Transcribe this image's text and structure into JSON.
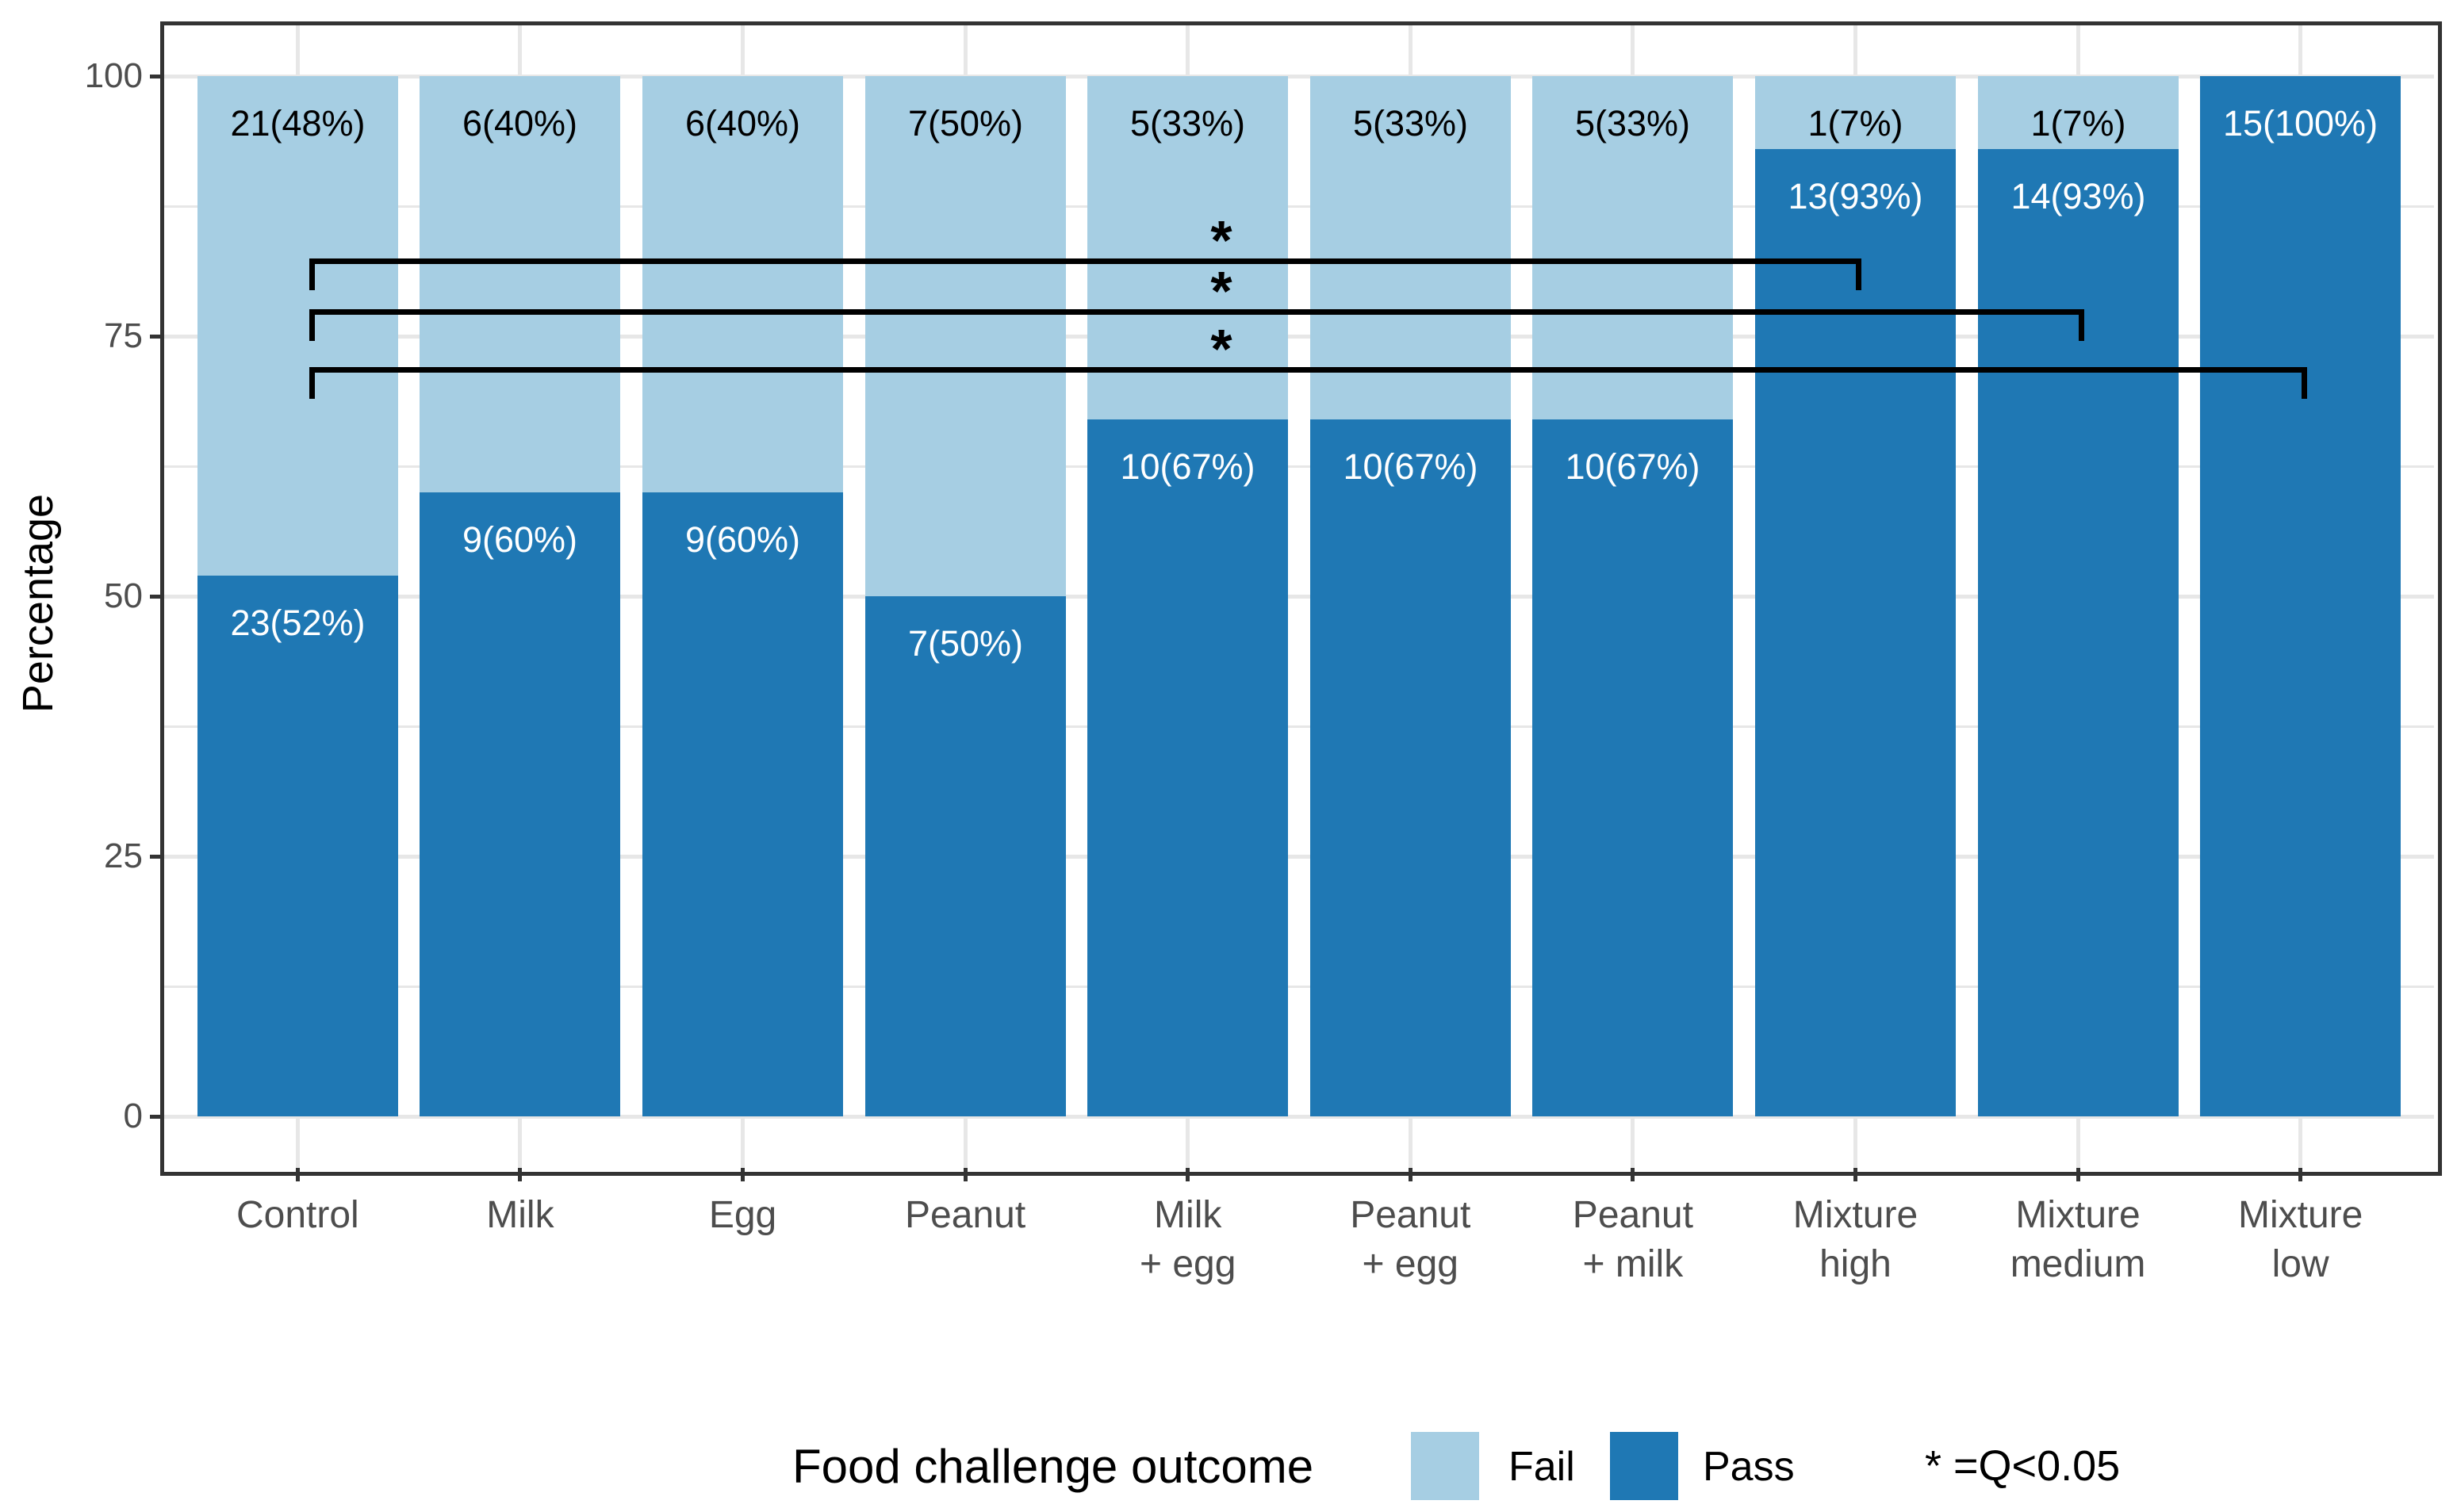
{
  "chart_data": {
    "type": "bar",
    "stacked": true,
    "orientation": "vertical",
    "ylabel": "Percentage",
    "xlabel": "",
    "ylim": [
      0,
      100
    ],
    "yticks_major": [
      0,
      25,
      50,
      75,
      100
    ],
    "ytick_labels": [
      "0",
      "25",
      "50",
      "75",
      "100"
    ],
    "yticks_minor": [
      12.5,
      37.5,
      62.5,
      87.5
    ],
    "grid": true,
    "categories": [
      "Control",
      "Milk",
      "Egg",
      "Peanut",
      "Milk\n+ egg",
      "Peanut\n+ egg",
      "Peanut\n+ milk",
      "Mixture\nhigh",
      "Mixture\nmedium",
      "Mixture\nlow"
    ],
    "series": [
      {
        "name": "Fail",
        "color": "#A6CEE3",
        "label_color": "#000000",
        "values": [
          48,
          40,
          40,
          50,
          33,
          33,
          33,
          7,
          7,
          0
        ],
        "bar_labels": [
          "21(48%)",
          "6(40%)",
          "6(40%)",
          "7(50%)",
          "5(33%)",
          "5(33%)",
          "5(33%)",
          "1(7%)",
          "1(7%)",
          ""
        ]
      },
      {
        "name": "Pass",
        "color": "#1F78B4",
        "label_color": "#FFFFFF",
        "values": [
          52,
          60,
          60,
          50,
          67,
          67,
          67,
          93,
          93,
          100
        ],
        "bar_labels": [
          "23(52%)",
          "9(60%)",
          "9(60%)",
          "7(50%)",
          "10(67%)",
          "10(67%)",
          "10(67%)",
          "13(93%)",
          "14(93%)",
          "15(100%)"
        ]
      }
    ],
    "significance_brackets": [
      {
        "from_index": 0,
        "to_index": 7,
        "from": "Control",
        "to": "Mixture high",
        "y": 82.5,
        "label": "*"
      },
      {
        "from_index": 0,
        "to_index": 8,
        "from": "Control",
        "to": "Mixture medium",
        "y": 77.6,
        "label": "*"
      },
      {
        "from_index": 0,
        "to_index": 9,
        "from": "Control",
        "to": "Mixture low",
        "y": 72.0,
        "label": "*"
      }
    ],
    "legend": {
      "position": "bottom",
      "title": "Food challenge outcome",
      "items": [
        {
          "label": "Fail",
          "color": "#A6CEE3"
        },
        {
          "label": "Pass",
          "color": "#1F78B4"
        }
      ],
      "note": "* =Q<0.05"
    }
  }
}
